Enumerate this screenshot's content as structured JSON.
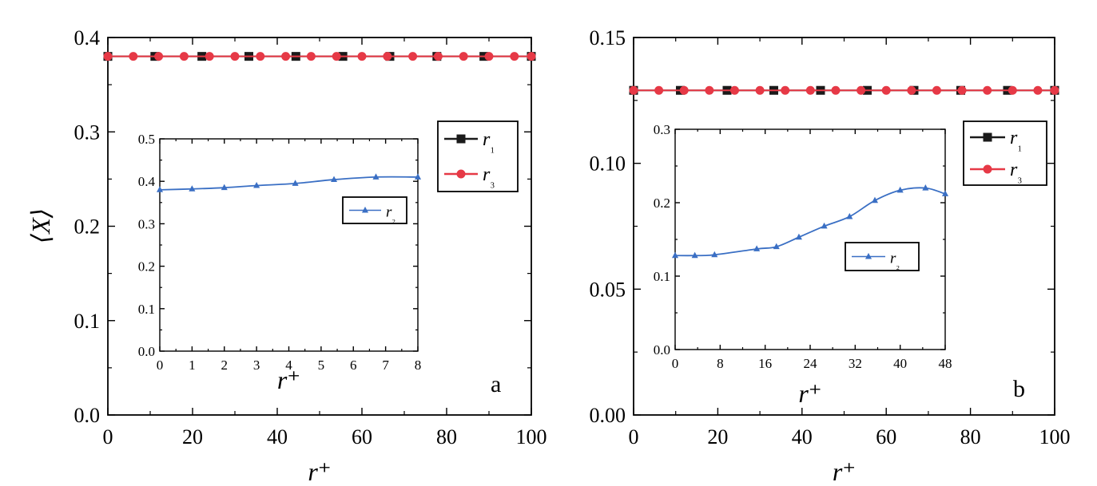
{
  "colors": {
    "r1": "#1a1a1a",
    "r3": "#e63946",
    "r2": "#3a6fc4",
    "axis": "#000000"
  },
  "chart_data": [
    {
      "panel": "a",
      "type": "line",
      "main": {
        "x_ticks": [
          "0",
          "20",
          "40",
          "60",
          "80",
          "100"
        ],
        "y_ticks": [
          "0.0",
          "0.1",
          "0.2",
          "0.3",
          "0.4"
        ],
        "xlim": [
          0,
          100
        ],
        "ylim": [
          0,
          0.4
        ],
        "xlabel": "r⁺",
        "ylabel": "⟨X⟩",
        "legend_position": "right-middle",
        "series": [
          {
            "name": "r₁",
            "marker": "square",
            "color": "r1",
            "x": [
              0,
              11.1,
              22.2,
              33.3,
              44.4,
              55.5,
              66.6,
              77.7,
              88.8,
              100
            ],
            "y": [
              0.38,
              0.38,
              0.38,
              0.38,
              0.38,
              0.38,
              0.38,
              0.38,
              0.38,
              0.38
            ]
          },
          {
            "name": "r₃",
            "marker": "circle",
            "color": "r3",
            "x": [
              0,
              6,
              12,
              18,
              24,
              30,
              36,
              42,
              48,
              54,
              60,
              66,
              72,
              78,
              84,
              90,
              96,
              100
            ],
            "y": [
              0.38,
              0.38,
              0.38,
              0.38,
              0.38,
              0.38,
              0.38,
              0.38,
              0.38,
              0.38,
              0.38,
              0.38,
              0.38,
              0.38,
              0.38,
              0.38,
              0.38,
              0.38
            ]
          }
        ]
      },
      "inset": {
        "x_ticks": [
          "0",
          "1",
          "2",
          "3",
          "4",
          "5",
          "6",
          "7",
          "8"
        ],
        "y_ticks": [
          "0.0",
          "0.1",
          "0.2",
          "0.3",
          "0.4",
          "0.5"
        ],
        "xlim": [
          0,
          8
        ],
        "ylim": [
          0,
          0.5
        ],
        "xlabel": "r⁺",
        "legend_position": "upper-right",
        "series": [
          {
            "name": "r₂",
            "marker": "triangle",
            "color": "r2",
            "x": [
              0,
              1,
              2,
              3,
              4.2,
              5.4,
              6.7,
              8
            ],
            "y": [
              0.38,
              0.382,
              0.385,
              0.39,
              0.395,
              0.404,
              0.41,
              0.41
            ]
          }
        ]
      }
    },
    {
      "panel": "b",
      "type": "line",
      "main": {
        "x_ticks": [
          "0",
          "20",
          "40",
          "60",
          "80",
          "100"
        ],
        "y_ticks": [
          "0.00",
          "0.05",
          "0.10",
          "0.15"
        ],
        "xlim": [
          0,
          100
        ],
        "ylim": [
          0,
          0.15
        ],
        "xlabel": "r⁺",
        "ylabel": "",
        "legend_position": "right-middle",
        "series": [
          {
            "name": "r₁",
            "marker": "square",
            "color": "r1",
            "x": [
              0,
              11.1,
              22.2,
              33.3,
              44.4,
              55.5,
              66.6,
              77.7,
              88.8,
              100
            ],
            "y": [
              0.129,
              0.129,
              0.129,
              0.129,
              0.129,
              0.129,
              0.129,
              0.129,
              0.129,
              0.129
            ]
          },
          {
            "name": "r₃",
            "marker": "circle",
            "color": "r3",
            "x": [
              0,
              6,
              12,
              18,
              24,
              30,
              36,
              42,
              48,
              54,
              60,
              66,
              72,
              78,
              84,
              90,
              96,
              100
            ],
            "y": [
              0.129,
              0.129,
              0.129,
              0.129,
              0.129,
              0.129,
              0.129,
              0.129,
              0.129,
              0.129,
              0.129,
              0.129,
              0.129,
              0.129,
              0.129,
              0.129,
              0.129,
              0.129
            ]
          }
        ]
      },
      "inset": {
        "x_ticks": [
          "0",
          "8",
          "16",
          "24",
          "32",
          "40",
          "48"
        ],
        "y_ticks": [
          "0.0",
          "0.1",
          "0.2",
          "0.3"
        ],
        "xlim": [
          0,
          48
        ],
        "ylim": [
          0,
          0.3
        ],
        "xlabel": "r⁺",
        "legend_position": "lower-right",
        "series": [
          {
            "name": "r₂",
            "marker": "triangle",
            "color": "r2",
            "x": [
              0,
              3.5,
              7,
              14.5,
              18,
              22,
              26.5,
              31,
              35.5,
              40,
              44.5,
              48
            ],
            "y": [
              0.128,
              0.128,
              0.129,
              0.137,
              0.14,
              0.153,
              0.168,
              0.181,
              0.203,
              0.217,
              0.22,
              0.212
            ]
          }
        ]
      }
    }
  ],
  "labels": {
    "panel_a": "a",
    "panel_b": "b"
  }
}
